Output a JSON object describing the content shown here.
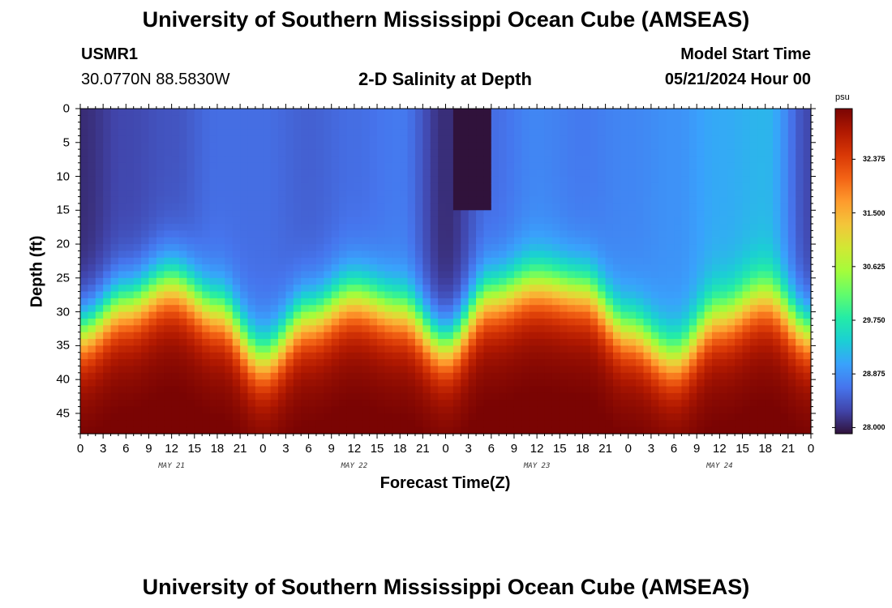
{
  "page": {
    "title_top": "University of Southern Mississippi Ocean Cube (AMSEAS)",
    "title_bottom": "University of Southern Mississippi Ocean Cube (AMSEAS)",
    "station_id": "USMR1",
    "station_coords": "30.0770N  88.5830W",
    "subtitle": "2-D Salinity at Depth",
    "model_start_label": "Model Start Time",
    "model_start_value": "05/21/2024 Hour 00"
  },
  "chart_data": {
    "type": "heatmap",
    "title": "2-D Salinity at Depth",
    "xlabel": "Forecast Time(Z)",
    "ylabel": "Depth (ft)",
    "x_tick_labels": [
      "0",
      "3",
      "6",
      "9",
      "12",
      "15",
      "18",
      "21",
      "0",
      "3",
      "6",
      "9",
      "12",
      "15",
      "18",
      "21",
      "0",
      "3",
      "6",
      "9",
      "12",
      "15",
      "18",
      "21",
      "0",
      "3",
      "6",
      "9",
      "12",
      "15",
      "18",
      "21",
      "0"
    ],
    "x_range_hours": [
      0,
      96
    ],
    "month_labels": [
      {
        "label": "MAY 21",
        "hour": 12
      },
      {
        "label": "MAY 22",
        "hour": 36
      },
      {
        "label": "MAY 23",
        "hour": 60
      },
      {
        "label": "MAY 24",
        "hour": 84
      }
    ],
    "y_ticks": [
      "0",
      "5",
      "10",
      "15",
      "20",
      "25",
      "30",
      "35",
      "40",
      "45"
    ],
    "y_range_ft": [
      0,
      48
    ],
    "colorbar": {
      "unit": "psu",
      "range": [
        27.9,
        33.2
      ],
      "tick_labels": [
        "32.375",
        "31.500",
        "30.625",
        "29.750",
        "28.875",
        "28.000"
      ]
    },
    "halocline_depth_ft": {
      "hours": [
        0,
        6,
        12,
        18,
        24,
        30,
        36,
        42,
        48,
        54,
        60,
        66,
        72,
        78,
        84,
        90,
        96
      ],
      "values": [
        33,
        29,
        26,
        30,
        37,
        31,
        28,
        30,
        35,
        28,
        26,
        27,
        33,
        37,
        31,
        28,
        33
      ]
    },
    "surface_salinity_psu": {
      "hours": [
        0,
        6,
        12,
        18,
        24,
        30,
        36,
        42,
        48,
        54,
        60,
        66,
        72,
        78,
        84,
        90,
        96
      ],
      "values": [
        28.1,
        28.3,
        28.4,
        28.6,
        28.6,
        28.5,
        28.6,
        28.7,
        28.1,
        28.6,
        28.8,
        28.7,
        28.8,
        28.9,
        29.1,
        29.2,
        28.3
      ]
    },
    "bottom_salinity_psu": 33.0,
    "freshwater_plume": {
      "hour_start": 49.5,
      "hour_end": 53.5,
      "depth_to_ft": 14.5,
      "salinity_psu": 27.9
    }
  },
  "colors": {
    "palette": [
      "#30123b",
      "#4145ab",
      "#4675ed",
      "#39a2fc",
      "#1bcfd4",
      "#24eca6",
      "#61fc6c",
      "#a4fc3b",
      "#d1e834",
      "#f3c63a",
      "#fe9b2d",
      "#f36315",
      "#d93806",
      "#b11901",
      "#7a0403"
    ]
  }
}
